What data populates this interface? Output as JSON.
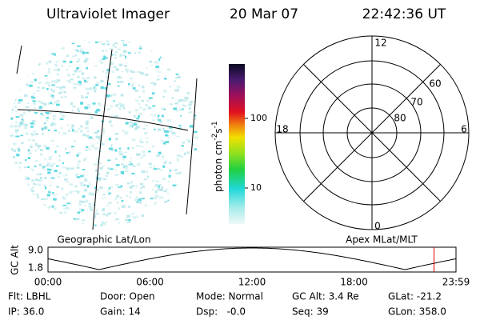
{
  "header": {
    "instrument": "Ultraviolet Imager",
    "date": "20 Mar 07",
    "time": "22:42:36 UT"
  },
  "colorbar": {
    "label": {
      "base": "photon cm",
      "exp1": "-2",
      "unit2": "s",
      "exp2": "-1"
    },
    "ticks": [
      "100",
      "10"
    ]
  },
  "polar": {
    "top": "12",
    "bottom": "0",
    "left": "18",
    "right": "6",
    "rings": [
      "60",
      "70",
      "80"
    ]
  },
  "panels": {
    "left_title": "Geographic Lat/Lon",
    "right_title": "Apex MLat/MLT"
  },
  "altitude_plot": {
    "ylabel": "GC Alt",
    "yticks": [
      "9.0",
      "1.8"
    ],
    "xticks": [
      "00:00",
      "06:00",
      "12:00",
      "18:00",
      "23:59"
    ]
  },
  "info": {
    "rows": [
      [
        "Flt: LBHL",
        "Door: Open",
        "Mode: Normal",
        "GC Alt: 3.4 Re",
        "GLat: -21.2"
      ],
      [
        "IP: 36.0",
        "Gain: 14",
        "Dsp:   -0.0",
        "Seq: 39",
        "GLon: 358.0"
      ]
    ]
  }
}
